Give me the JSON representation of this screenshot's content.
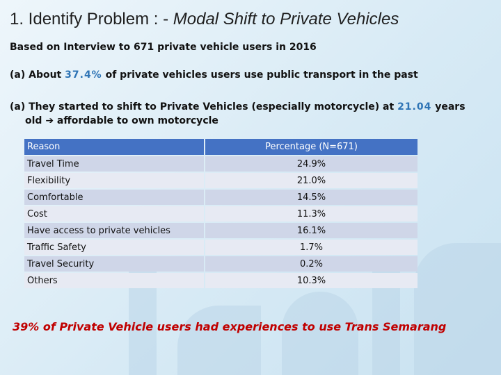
{
  "title": {
    "prefix": "1. Identify Problem : - ",
    "italic": "Modal Shift to Private Vehicles"
  },
  "intro": "Based on Interview to 671 private vehicle users in 2016",
  "point_a": {
    "before": "(a) About ",
    "value": "37.4%",
    "after": " of private vehicles users use public transport in the past"
  },
  "point_b": {
    "before": "(a) They started to shift to Private Vehicles (especially motorcycle) at ",
    "value": "21.04",
    "after": " years",
    "line2_start": "old ",
    "arrow": "➔",
    "line2_end": " affordable to own motorcycle"
  },
  "table": {
    "headers": [
      "Reason",
      "Percentage (N=671)"
    ],
    "rows": [
      [
        "Travel Time",
        "24.9%"
      ],
      [
        "Flexibility",
        "21.0%"
      ],
      [
        "Comfortable",
        "14.5%"
      ],
      [
        "Cost",
        "11.3%"
      ],
      [
        "Have access to private vehicles",
        "16.1%"
      ],
      [
        "Traffic Safety",
        "1.7%"
      ],
      [
        "Travel Security",
        "0.2%"
      ],
      [
        "Others",
        "10.3%"
      ]
    ]
  },
  "conclusion": "39% of Private Vehicle users had experiences to use Trans Semarang"
}
